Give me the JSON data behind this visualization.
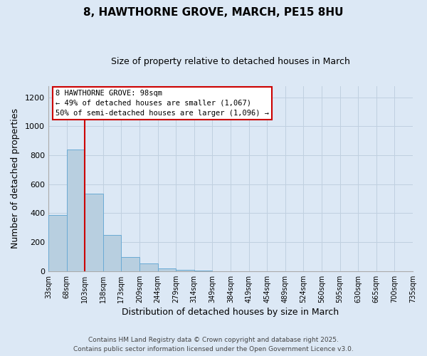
{
  "title": "8, HAWTHORNE GROVE, MARCH, PE15 8HU",
  "subtitle": "Size of property relative to detached houses in March",
  "xlabel": "Distribution of detached houses by size in March",
  "ylabel": "Number of detached properties",
  "bar_values": [
    390,
    840,
    535,
    248,
    97,
    52,
    18,
    10,
    5,
    0,
    0,
    0,
    0,
    0,
    0,
    0,
    0,
    0,
    0,
    0
  ],
  "bar_labels": [
    "33sqm",
    "68sqm",
    "103sqm",
    "138sqm",
    "173sqm",
    "209sqm",
    "244sqm",
    "279sqm",
    "314sqm",
    "349sqm",
    "384sqm",
    "419sqm",
    "454sqm",
    "489sqm",
    "524sqm",
    "560sqm",
    "595sqm",
    "630sqm",
    "665sqm",
    "700sqm",
    "735sqm"
  ],
  "bar_color": "#b8cfe0",
  "bar_edge_color": "#6aaad4",
  "vline_color": "#cc0000",
  "ylim": [
    0,
    1280
  ],
  "yticks": [
    0,
    200,
    400,
    600,
    800,
    1000,
    1200
  ],
  "annotation_line1": "8 HAWTHORNE GROVE: 98sqm",
  "annotation_line2": "← 49% of detached houses are smaller (1,067)",
  "annotation_line3": "50% of semi-detached houses are larger (1,096) →",
  "annotation_box_facecolor": "#ffffff",
  "annotation_box_edgecolor": "#cc0000",
  "footer_line1": "Contains HM Land Registry data © Crown copyright and database right 2025.",
  "footer_line2": "Contains public sector information licensed under the Open Government Licence v3.0.",
  "background_color": "#dce8f5",
  "grid_color": "#c0d0e0",
  "title_fontsize": 11,
  "subtitle_fontsize": 9
}
